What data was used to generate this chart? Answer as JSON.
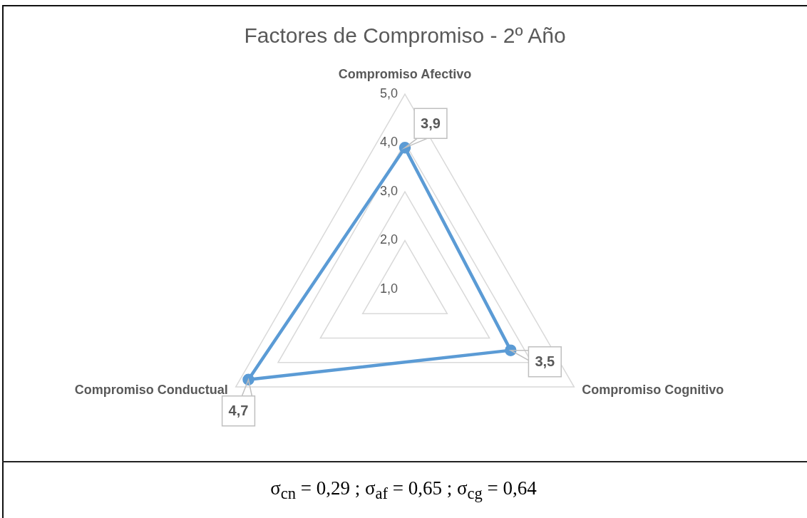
{
  "chart_data": {
    "type": "radar",
    "title": "Factores de Compromiso - 2º Año",
    "categories": [
      "Compromiso Afectivo",
      "Compromiso Cognitivo",
      "Compromiso Conductual"
    ],
    "series": [
      {
        "color": "#5b9bd5",
        "values": [
          3.9,
          3.5,
          4.7
        ],
        "value_labels": [
          "3,9",
          "3,5",
          "4,7"
        ]
      }
    ],
    "ylim": [
      1,
      5
    ],
    "yticks": [
      {
        "value": 1,
        "label": "1,0"
      },
      {
        "value": 2,
        "label": "2,0"
      },
      {
        "value": 3,
        "label": "3,0"
      },
      {
        "value": 4,
        "label": "4,0"
      },
      {
        "value": 5,
        "label": "5,0"
      }
    ],
    "grid": true,
    "marker": "circle",
    "annotations": [
      "σ$_{cn}$ = 0,29 ; σ$_{af}$ = 0,65 ; σ$_{cg}$ = 0,64"
    ]
  }
}
